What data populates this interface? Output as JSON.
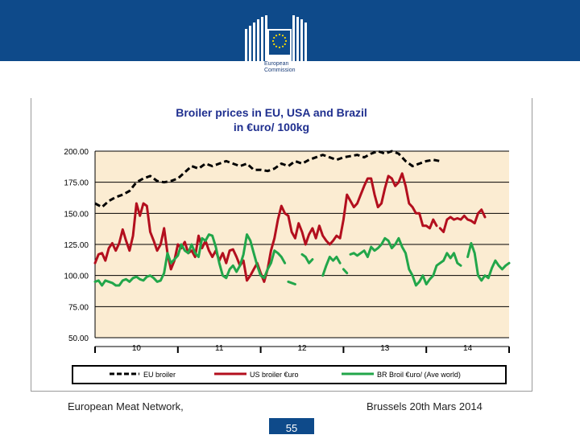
{
  "branding": {
    "org_line1": "European",
    "org_line2": "Commission",
    "colors": {
      "band": "#0e4a8a",
      "flag": "#0e4a8a",
      "stars": "#ffdd00"
    }
  },
  "footer": {
    "left": "European Meat Network,",
    "right": "Brussels 20th Mars 2014",
    "page": "55"
  },
  "chart_data": {
    "type": "line",
    "title": "Broiler prices in EU, USA and Brazil",
    "subtitle": "in €uro/ 100kg",
    "ylim": [
      50,
      200
    ],
    "xlim": [
      0,
      60
    ],
    "yticks": [
      "200.00",
      "175.00",
      "150.00",
      "125.00",
      "100.00",
      "75.00",
      "50.00"
    ],
    "ytick_values": [
      200,
      175,
      150,
      125,
      100,
      75,
      50
    ],
    "xticks": [
      "10",
      "11",
      "12",
      "13",
      "14"
    ],
    "xtick_positions": [
      6,
      18,
      30,
      42,
      54
    ],
    "colors": {
      "panel": "#fbecd2",
      "grid": "#000000",
      "title": "#1f2f8f"
    },
    "legend": [
      "EU broiler",
      "US broiler €uro",
      "BR Broil €uro/ (Ave world)"
    ],
    "series": [
      {
        "name": "EU broiler",
        "color": "#000000",
        "style": "dashed",
        "values": [
          [
            0,
            158
          ],
          [
            1,
            155
          ],
          [
            2,
            160
          ],
          [
            3,
            163
          ],
          [
            4,
            165
          ],
          [
            5,
            168
          ],
          [
            6,
            175
          ],
          [
            7,
            178
          ],
          [
            8,
            180
          ],
          [
            9,
            176
          ],
          [
            10,
            175
          ],
          [
            11,
            176
          ],
          [
            12,
            178
          ],
          [
            13,
            183
          ],
          [
            14,
            188
          ],
          [
            15,
            186
          ],
          [
            16,
            190
          ],
          [
            17,
            188
          ],
          [
            18,
            190
          ],
          [
            19,
            192
          ],
          [
            20,
            190
          ],
          [
            21,
            188
          ],
          [
            22,
            190
          ],
          [
            23,
            185
          ],
          [
            24,
            185
          ],
          [
            25,
            184
          ],
          [
            26,
            186
          ],
          [
            27,
            190
          ],
          [
            28,
            188
          ],
          [
            29,
            192
          ],
          [
            30,
            190
          ],
          [
            31,
            193
          ],
          [
            32,
            195
          ],
          [
            33,
            197
          ],
          [
            34,
            195
          ],
          [
            35,
            193
          ],
          [
            36,
            195
          ],
          [
            37,
            196
          ],
          [
            38,
            197
          ],
          [
            39,
            195
          ],
          [
            40,
            198
          ],
          [
            41,
            200
          ],
          [
            42,
            198
          ],
          [
            43,
            200
          ],
          [
            44,
            198
          ],
          [
            45,
            192
          ],
          [
            46,
            188
          ],
          [
            47,
            190
          ],
          [
            48,
            192
          ],
          [
            49,
            193
          ],
          [
            50,
            192
          ]
        ]
      },
      {
        "name": "US broiler €uro",
        "color": "#b30f1e",
        "style": "solid",
        "segments": [
          [
            [
              0,
              110
            ],
            [
              0.5,
              117
            ],
            [
              1,
              118
            ],
            [
              1.5,
              112
            ],
            [
              2,
              122
            ],
            [
              2.5,
              126
            ],
            [
              3,
              120
            ],
            [
              3.5,
              126
            ],
            [
              4,
              137
            ],
            [
              4.5,
              128
            ],
            [
              5,
              120
            ],
            [
              5.5,
              132
            ],
            [
              6,
              158
            ],
            [
              6.5,
              148
            ],
            [
              7,
              158
            ],
            [
              7.5,
              156
            ],
            [
              8,
              135
            ],
            [
              8.5,
              128
            ],
            [
              9,
              120
            ],
            [
              9.5,
              125
            ],
            [
              10,
              138
            ],
            [
              10.5,
              118
            ],
            [
              11,
              105
            ],
            [
              11.5,
              112
            ],
            [
              12,
              125
            ],
            [
              12.5,
              122
            ],
            [
              13,
              127
            ],
            [
              13.5,
              118
            ],
            [
              14,
              120
            ],
            [
              14.5,
              115
            ],
            [
              15,
              132
            ],
            [
              15.5,
              122
            ],
            [
              16,
              128
            ],
            [
              16.5,
              120
            ],
            [
              17,
              115
            ],
            [
              17.5,
              120
            ],
            [
              18,
              112
            ],
            [
              18.5,
              118
            ],
            [
              19,
              110
            ],
            [
              19.5,
              120
            ],
            [
              20,
              121
            ],
            [
              20.5,
              115
            ],
            [
              21,
              108
            ],
            [
              21.5,
              112
            ],
            [
              22,
              96
            ],
            [
              22.5,
              100
            ],
            [
              23,
              105
            ],
            [
              23.5,
              110
            ],
            [
              24,
              102
            ],
            [
              24.5,
              95
            ],
            [
              25,
              105
            ],
            [
              25.5,
              120
            ],
            [
              26,
              130
            ],
            [
              26.5,
              145
            ],
            [
              27,
              156
            ],
            [
              27.5,
              150
            ],
            [
              28,
              148
            ],
            [
              28.5,
              135
            ],
            [
              29,
              130
            ],
            [
              29.5,
              142
            ],
            [
              30,
              135
            ],
            [
              30.5,
              125
            ],
            [
              31,
              133
            ],
            [
              31.5,
              138
            ],
            [
              32,
              130
            ],
            [
              32.5,
              140
            ],
            [
              33,
              132
            ],
            [
              33.5,
              128
            ],
            [
              34,
              125
            ],
            [
              34.5,
              128
            ],
            [
              35,
              132
            ],
            [
              35.5,
              130
            ],
            [
              36,
              145
            ],
            [
              36.5,
              165
            ],
            [
              37,
              160
            ],
            [
              37.5,
              155
            ],
            [
              38,
              158
            ],
            [
              38.5,
              165
            ],
            [
              39,
              172
            ],
            [
              39.5,
              178
            ],
            [
              40,
              178
            ],
            [
              40.5,
              165
            ],
            [
              41,
              155
            ],
            [
              41.5,
              158
            ],
            [
              42,
              170
            ],
            [
              42.5,
              180
            ],
            [
              43,
              178
            ],
            [
              43.5,
              172
            ],
            [
              44,
              175
            ],
            [
              44.5,
              182
            ],
            [
              45,
              172
            ],
            [
              45.5,
              158
            ],
            [
              46,
              155
            ],
            [
              46.5,
              150
            ],
            [
              47,
              150
            ],
            [
              47.5,
              140
            ],
            [
              48,
              140
            ],
            [
              48.5,
              138
            ],
            [
              49,
              145
            ],
            [
              49.5,
              140
            ]
          ],
          [
            [
              50,
              138
            ],
            [
              50.5,
              135
            ],
            [
              51,
              145
            ],
            [
              51.5,
              147
            ],
            [
              52,
              145
            ],
            [
              52.5,
              146
            ],
            [
              53,
              145
            ],
            [
              53.5,
              148
            ],
            [
              54,
              145
            ],
            [
              54.5,
              144
            ],
            [
              55,
              142
            ],
            [
              55.5,
              150
            ],
            [
              56,
              153
            ],
            [
              56.5,
              147
            ]
          ]
        ]
      },
      {
        "name": "BR Broil €uro/ (Ave world)",
        "color": "#22a64a",
        "style": "solid",
        "segments": [
          [
            [
              0,
              95
            ],
            [
              0.5,
              96
            ],
            [
              1,
              92
            ],
            [
              1.5,
              96
            ],
            [
              2,
              95
            ],
            [
              2.5,
              94
            ],
            [
              3,
              92
            ],
            [
              3.5,
              92
            ],
            [
              4,
              96
            ],
            [
              4.5,
              97
            ],
            [
              5,
              95
            ],
            [
              5.5,
              98
            ],
            [
              6,
              99
            ],
            [
              6.5,
              97
            ],
            [
              7,
              96
            ],
            [
              7.5,
              99
            ],
            [
              8,
              100
            ],
            [
              8.5,
              98
            ],
            [
              9,
              95
            ],
            [
              9.5,
              96
            ],
            [
              10,
              102
            ],
            [
              10.5,
              118
            ],
            [
              11,
              110
            ],
            [
              11.5,
              113
            ],
            [
              12,
              116
            ],
            [
              12.5,
              125
            ],
            [
              13,
              120
            ],
            [
              13.5,
              118
            ],
            [
              14,
              125
            ],
            [
              14.5,
              118
            ],
            [
              15,
              115
            ],
            [
              15.5,
              130
            ],
            [
              16,
              128
            ],
            [
              16.5,
              133
            ],
            [
              17,
              132
            ],
            [
              17.5,
              123
            ],
            [
              18,
              110
            ],
            [
              18.5,
              100
            ],
            [
              19,
              98
            ],
            [
              19.5,
              105
            ],
            [
              20,
              108
            ],
            [
              20.5,
              103
            ],
            [
              21,
              108
            ],
            [
              21.5,
              117
            ],
            [
              22,
              133
            ],
            [
              22.5,
              128
            ],
            [
              23,
              118
            ],
            [
              23.5,
              108
            ],
            [
              24,
              100
            ],
            [
              24.5,
              98
            ],
            [
              25,
              105
            ],
            [
              25.5,
              110
            ],
            [
              26,
              120
            ],
            [
              26.5,
              118
            ],
            [
              27,
              115
            ],
            [
              27.5,
              110
            ]
          ],
          [
            [
              28,
              95
            ],
            [
              28.5,
              94
            ],
            [
              29,
              93
            ]
          ],
          [
            [
              30,
              117
            ],
            [
              30.5,
              115
            ],
            [
              31,
              110
            ],
            [
              31.5,
              113
            ]
          ],
          [
            [
              33,
              100
            ],
            [
              33.5,
              108
            ],
            [
              34,
              115
            ],
            [
              34.5,
              112
            ],
            [
              35,
              115
            ],
            [
              35.5,
              110
            ]
          ],
          [
            [
              36,
              105
            ],
            [
              36.5,
              102
            ]
          ],
          [
            [
              37,
              117
            ],
            [
              37.5,
              118
            ],
            [
              38,
              116
            ],
            [
              38.5,
              118
            ],
            [
              39,
              120
            ],
            [
              39.5,
              115
            ],
            [
              40,
              123
            ],
            [
              40.5,
              120
            ],
            [
              41,
              122
            ],
            [
              41.5,
              125
            ],
            [
              42,
              130
            ],
            [
              42.5,
              128
            ],
            [
              43,
              122
            ],
            [
              43.5,
              125
            ],
            [
              44,
              130
            ],
            [
              44.5,
              123
            ],
            [
              45,
              118
            ],
            [
              45.5,
              105
            ],
            [
              46,
              100
            ],
            [
              46.5,
              92
            ],
            [
              47,
              95
            ],
            [
              47.5,
              100
            ],
            [
              48,
              93
            ],
            [
              48.5,
              97
            ],
            [
              49,
              100
            ],
            [
              49.5,
              108
            ],
            [
              50,
              110
            ],
            [
              50.5,
              112
            ],
            [
              51,
              118
            ],
            [
              51.5,
              114
            ],
            [
              52,
              118
            ],
            [
              52.5,
              110
            ],
            [
              53,
              108
            ]
          ],
          [
            [
              54,
              115
            ],
            [
              54.5,
              126
            ],
            [
              55,
              118
            ],
            [
              55.5,
              100
            ],
            [
              56,
              96
            ],
            [
              56.5,
              100
            ],
            [
              57,
              98
            ],
            [
              57.5,
              106
            ],
            [
              58,
              112
            ],
            [
              58.5,
              108
            ],
            [
              59,
              105
            ],
            [
              59.5,
              108
            ],
            [
              60,
              110
            ]
          ]
        ]
      }
    ]
  }
}
